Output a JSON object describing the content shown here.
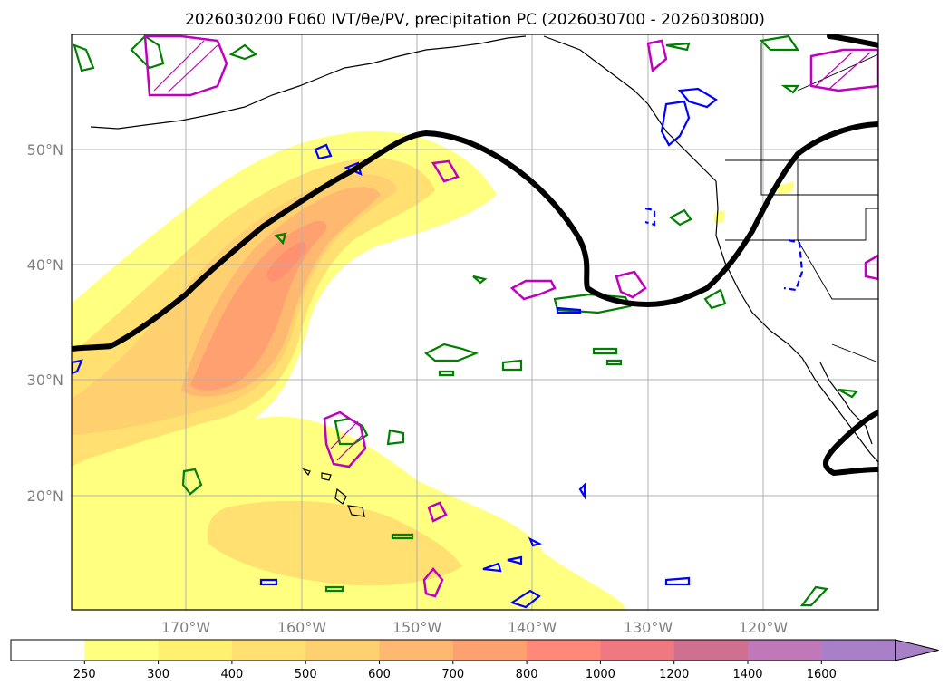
{
  "title": "2026030200 F060 IVT/θe/PV, precipitation PC (2026030700 - 2026030800)",
  "map": {
    "lon_labels": [
      "170°W",
      "160°W",
      "150°W",
      "140°W",
      "130°W",
      "120°W"
    ],
    "lat_labels": [
      "50°N",
      "40°N",
      "30°N",
      "20°N"
    ]
  },
  "colorbar": {
    "ticks": [
      "250",
      "300",
      "400",
      "500",
      "600",
      "700",
      "800",
      "1000",
      "1200",
      "1400",
      "1600"
    ],
    "colors": [
      "#ffffff",
      "#ffff80",
      "#fff070",
      "#ffe070",
      "#ffd070",
      "#ffb870",
      "#ffa070",
      "#ff8878",
      "#f07880",
      "#d07090",
      "#c078b8",
      "#a880c8"
    ],
    "extend": "max"
  },
  "colors": {
    "ivt_low": "#ffff80",
    "ivt_mid": "#ffd070",
    "ivt_high": "#ffa070",
    "theta_e_contour": "#008000",
    "precip_contour": "#0000ff",
    "pv_contour": "#c000c0",
    "pv_front": "#000000"
  }
}
